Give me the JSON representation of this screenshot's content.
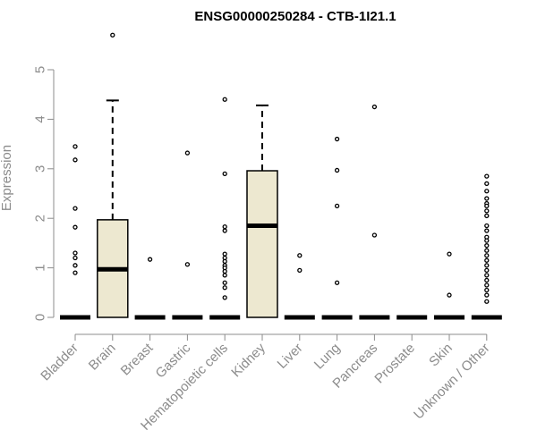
{
  "chart_data": {
    "type": "box",
    "title": "ENSG00000250284 - CTB-1I21.1",
    "ylabel": "Expression",
    "xlabel": "",
    "ylim": [
      0,
      5.8
    ],
    "yticks": [
      0,
      1,
      2,
      3,
      4,
      5
    ],
    "categories": [
      "Bladder",
      "Brain",
      "Breast",
      "Gastric",
      "Hematopoietic cells",
      "Kidney",
      "Liver",
      "Lung",
      "Pancreas",
      "Prostate",
      "Skin",
      "Unknown / Other"
    ],
    "boxes": [
      {
        "category": "Bladder",
        "q1": 0,
        "median": 0,
        "q3": 0,
        "whisker_low": 0,
        "whisker_high": 0,
        "outliers": [
          3.45,
          3.18,
          2.2,
          1.82,
          1.3,
          1.2,
          1.05,
          0.9
        ]
      },
      {
        "category": "Brain",
        "q1": 0,
        "median": 0.97,
        "q3": 1.97,
        "whisker_low": 0,
        "whisker_high": 4.38,
        "outliers": [
          5.7
        ]
      },
      {
        "category": "Breast",
        "q1": 0,
        "median": 0,
        "q3": 0,
        "whisker_low": 0,
        "whisker_high": 0,
        "outliers": [
          1.17
        ]
      },
      {
        "category": "Gastric",
        "q1": 0,
        "median": 0,
        "q3": 0,
        "whisker_low": 0,
        "whisker_high": 0,
        "outliers": [
          3.32,
          1.07
        ]
      },
      {
        "category": "Hematopoietic cells",
        "q1": 0,
        "median": 0,
        "q3": 0,
        "whisker_low": 0,
        "whisker_high": 0,
        "outliers": [
          4.4,
          2.9,
          1.83,
          1.75,
          1.28,
          1.2,
          1.13,
          1.05,
          1.0,
          0.93,
          0.85,
          0.7,
          0.6,
          0.4
        ]
      },
      {
        "category": "Kidney",
        "q1": 0,
        "median": 1.85,
        "q3": 2.96,
        "whisker_low": 0,
        "whisker_high": 4.28,
        "outliers": []
      },
      {
        "category": "Liver",
        "q1": 0,
        "median": 0,
        "q3": 0,
        "whisker_low": 0,
        "whisker_high": 0,
        "outliers": [
          1.25,
          0.95
        ]
      },
      {
        "category": "Lung",
        "q1": 0,
        "median": 0,
        "q3": 0,
        "whisker_low": 0,
        "whisker_high": 0,
        "outliers": [
          3.6,
          2.97,
          2.25,
          0.7
        ]
      },
      {
        "category": "Pancreas",
        "q1": 0,
        "median": 0,
        "q3": 0,
        "whisker_low": 0,
        "whisker_high": 0,
        "outliers": [
          4.25,
          1.66
        ]
      },
      {
        "category": "Prostate",
        "q1": 0,
        "median": 0,
        "q3": 0,
        "whisker_low": 0,
        "whisker_high": 0,
        "outliers": []
      },
      {
        "category": "Skin",
        "q1": 0,
        "median": 0,
        "q3": 0,
        "whisker_low": 0,
        "whisker_high": 0,
        "outliers": [
          1.28,
          0.45
        ]
      },
      {
        "category": "Unknown / Other",
        "q1": 0,
        "median": 0,
        "q3": 0,
        "whisker_low": 0,
        "whisker_high": 0,
        "outliers": [
          2.85,
          2.7,
          2.55,
          2.4,
          2.3,
          2.25,
          2.15,
          2.05,
          1.85,
          1.75,
          1.62,
          1.55,
          1.45,
          1.35,
          1.25,
          1.15,
          1.05,
          0.95,
          0.85,
          0.75,
          0.65,
          0.55,
          0.45,
          0.32
        ]
      }
    ],
    "grid": false,
    "legend": "none",
    "colors": {
      "box_fill": "#ede8d0",
      "box_stroke": "#000000",
      "median": "#000000",
      "axis": "#8c8c8c"
    }
  }
}
